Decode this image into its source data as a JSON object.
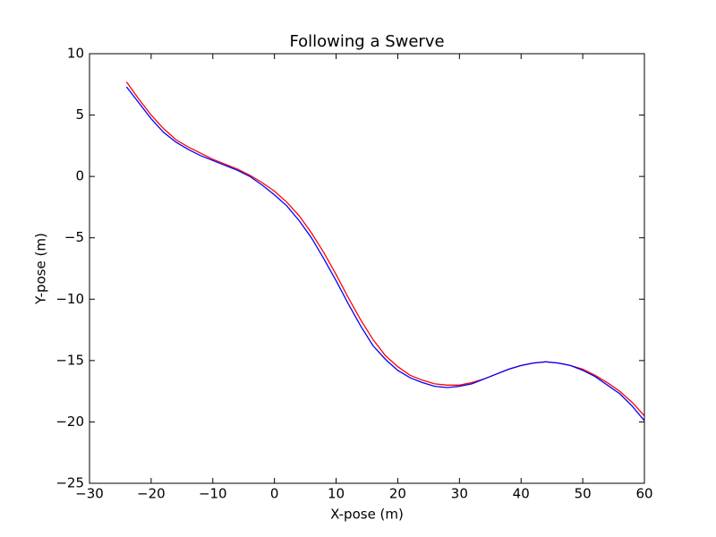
{
  "chart_data": {
    "type": "line",
    "title": "Following a Swerve",
    "x_label": "X-pose (m)",
    "y_label": "Y-pose (m)",
    "x": [
      -24,
      -22,
      -20,
      -18,
      -16,
      -14,
      -12,
      -10,
      -8,
      -6,
      -4,
      -2,
      0,
      2,
      4,
      6,
      8,
      10,
      12,
      14,
      16,
      18,
      20,
      22,
      24,
      26,
      28,
      30,
      32,
      34,
      36,
      38,
      40,
      42,
      44,
      46,
      48,
      50,
      52,
      54,
      56,
      58,
      60
    ],
    "series": [
      {
        "color": "#ff0000",
        "values": [
          7.7,
          6.3,
          5.0,
          3.9,
          3.0,
          2.4,
          1.9,
          1.4,
          1.0,
          0.6,
          0.1,
          -0.5,
          -1.2,
          -2.1,
          -3.2,
          -4.6,
          -6.2,
          -8.0,
          -9.9,
          -11.7,
          -13.3,
          -14.6,
          -15.5,
          -16.2,
          -16.6,
          -16.9,
          -17.0,
          -17.0,
          -16.8,
          -16.5,
          -16.1,
          -15.7,
          -15.4,
          -15.2,
          -15.1,
          -15.2,
          -15.4,
          -15.7,
          -16.2,
          -16.8,
          -17.5,
          -18.4,
          -19.5
        ]
      },
      {
        "color": "#0000ff",
        "values": [
          7.3,
          6.0,
          4.7,
          3.6,
          2.8,
          2.2,
          1.7,
          1.3,
          0.9,
          0.5,
          0.0,
          -0.7,
          -1.5,
          -2.4,
          -3.6,
          -5.0,
          -6.7,
          -8.5,
          -10.4,
          -12.2,
          -13.8,
          -14.9,
          -15.8,
          -16.4,
          -16.8,
          -17.1,
          -17.2,
          -17.1,
          -16.9,
          -16.5,
          -16.1,
          -15.7,
          -15.4,
          -15.2,
          -15.1,
          -15.2,
          -15.4,
          -15.8,
          -16.3,
          -17.0,
          -17.7,
          -18.7,
          -19.9
        ]
      }
    ],
    "xlim": [
      -30,
      60
    ],
    "xticks": [
      {
        "value": -30,
        "label": "−30"
      },
      {
        "value": -20,
        "label": "−20"
      },
      {
        "value": -10,
        "label": "−10"
      },
      0,
      10,
      20,
      30,
      40,
      50,
      60
    ],
    "ylim": [
      -25,
      10
    ],
    "yticks": [
      {
        "value": -25,
        "label": "−25"
      },
      {
        "value": -20,
        "label": "−20"
      },
      {
        "value": -15,
        "label": "−15"
      },
      {
        "value": -10,
        "label": "−10"
      },
      {
        "value": -5,
        "label": "−5"
      },
      0,
      5,
      10
    ],
    "grid": false
  }
}
